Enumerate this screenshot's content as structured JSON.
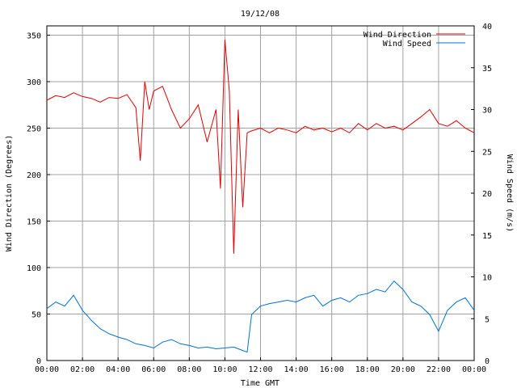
{
  "chart_data": {
    "type": "line",
    "title": "19/12/08",
    "xlabel": "Time GMT",
    "ylabel_left": "Wind Direction (Degrees)",
    "ylabel_right": "Wind Speed (m/s)",
    "x_ticks": [
      "00:00",
      "02:00",
      "04:00",
      "06:00",
      "08:00",
      "10:00",
      "12:00",
      "14:00",
      "16:00",
      "18:00",
      "20:00",
      "22:00",
      "00:00"
    ],
    "x_range_hours": [
      0,
      24
    ],
    "y_left_ticks": [
      0,
      50,
      100,
      150,
      200,
      250,
      300,
      350
    ],
    "y_left_range": [
      0,
      360
    ],
    "y_right_ticks": [
      0,
      5,
      10,
      15,
      20,
      25,
      30,
      35,
      40
    ],
    "y_right_range": [
      0,
      40
    ],
    "grid": true,
    "legend_position": "top-right",
    "series": [
      {
        "name": "Wind Direction",
        "axis": "left",
        "color": "#e00000",
        "x_hours": [
          0,
          0.5,
          1,
          1.5,
          2,
          2.5,
          3,
          3.5,
          4,
          4.5,
          5,
          5.25,
          5.5,
          5.75,
          6,
          6.5,
          7,
          7.5,
          8,
          8.5,
          9,
          9.5,
          9.75,
          10,
          10.25,
          10.5,
          10.75,
          11,
          11.25,
          11.5,
          12,
          12.5,
          13,
          13.5,
          14,
          14.5,
          15,
          15.5,
          16,
          16.5,
          17,
          17.5,
          18,
          18.5,
          19,
          19.5,
          20,
          20.5,
          21,
          21.5,
          22,
          22.5,
          23,
          23.5,
          24
        ],
        "values": [
          280,
          285,
          283,
          288,
          284,
          282,
          278,
          283,
          282,
          286,
          272,
          215,
          300,
          270,
          290,
          295,
          270,
          250,
          260,
          275,
          235,
          270,
          185,
          345,
          290,
          115,
          270,
          165,
          245,
          247,
          250,
          245,
          250,
          248,
          245,
          252,
          248,
          250,
          246,
          250,
          245,
          255,
          248,
          255,
          250,
          252,
          248,
          255,
          262,
          270,
          255,
          252,
          258,
          250,
          245
        ]
      },
      {
        "name": "Wind Speed",
        "axis": "right",
        "color": "#0070d0",
        "x_hours": [
          0,
          0.5,
          1,
          1.5,
          2,
          2.5,
          3,
          3.5,
          4,
          4.5,
          5,
          5.5,
          6,
          6.5,
          7,
          7.5,
          8,
          8.5,
          9,
          9.5,
          10,
          10.5,
          11,
          11.25,
          11.5,
          12,
          12.5,
          13,
          13.5,
          14,
          14.5,
          15,
          15.5,
          16,
          16.5,
          17,
          17.5,
          18,
          18.5,
          19,
          19.5,
          20,
          20.5,
          21,
          21.5,
          22,
          22.5,
          23,
          23.5,
          24
        ],
        "values": [
          6.2,
          7.0,
          6.5,
          7.8,
          6.0,
          4.8,
          3.8,
          3.2,
          2.8,
          2.5,
          2.0,
          1.8,
          1.5,
          2.2,
          2.5,
          2.0,
          1.8,
          1.5,
          1.6,
          1.4,
          1.5,
          1.6,
          1.2,
          1.0,
          5.5,
          6.5,
          6.8,
          7.0,
          7.2,
          7.0,
          7.5,
          7.8,
          6.5,
          7.2,
          7.5,
          7.0,
          7.8,
          8.0,
          8.5,
          8.2,
          9.5,
          8.5,
          7.0,
          6.5,
          5.5,
          3.5,
          6.0,
          7.0,
          7.5,
          6.0
        ]
      }
    ]
  }
}
